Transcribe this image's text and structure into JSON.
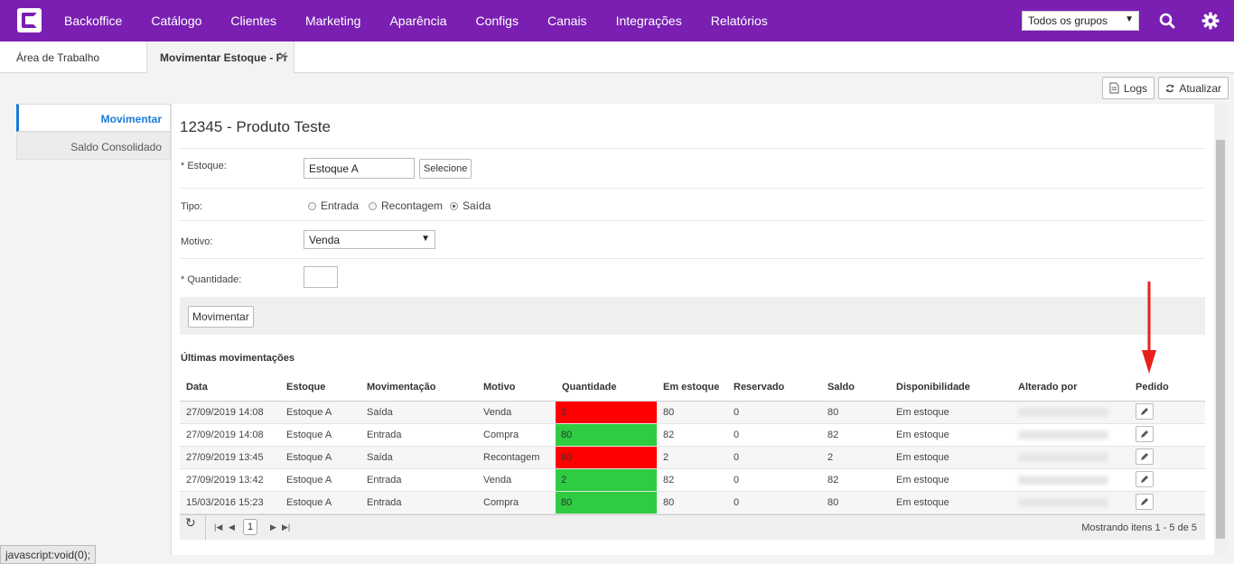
{
  "nav": {
    "items": [
      "Backoffice",
      "Catálogo",
      "Clientes",
      "Marketing",
      "Aparência",
      "Configs",
      "Canais",
      "Integrações",
      "Relatórios"
    ],
    "group_select": "Todos os grupos",
    "search_icon": "search-icon",
    "settings_icon": "gear-icon"
  },
  "tabs": {
    "workspace": "Área de Trabalho",
    "active": "Movimentar Estoque - Pr"
  },
  "toolbar": {
    "logs": "Logs",
    "refresh": "Atualizar"
  },
  "sidebar": {
    "items": [
      "Movimentar",
      "Saldo Consolidado"
    ]
  },
  "product": {
    "title": "12345 - Produto Teste"
  },
  "form": {
    "estoque_label": "* Estoque:",
    "estoque_value": "Estoque A",
    "select_button": "Selecione",
    "tipo_label": "Tipo:",
    "tipo_options": [
      "Entrada",
      "Recontagem",
      "Saída"
    ],
    "tipo_selected": "Saída",
    "motivo_label": "Motivo:",
    "motivo_value": "Venda",
    "quantidade_label": "* Quantidade:",
    "quantidade_value": "",
    "submit": "Movimentar"
  },
  "history": {
    "title": "Últimas movimentações",
    "columns": [
      "Data",
      "Estoque",
      "Movimentação",
      "Motivo",
      "Quantidade",
      "Em estoque",
      "Reservado",
      "Saldo",
      "Disponibilidade",
      "Alterado por",
      "Pedido"
    ],
    "rows": [
      {
        "data": "27/09/2019 14:08",
        "estoque": "Estoque A",
        "mov": "Saída",
        "motivo": "Venda",
        "qtd": "2",
        "qtd_color": "#ff0000",
        "em_estoque": "80",
        "reservado": "0",
        "saldo": "80",
        "disp": "Em estoque"
      },
      {
        "data": "27/09/2019 14:08",
        "estoque": "Estoque A",
        "mov": "Entrada",
        "motivo": "Compra",
        "qtd": "80",
        "qtd_color": "#2ecc40",
        "em_estoque": "82",
        "reservado": "0",
        "saldo": "82",
        "disp": "Em estoque"
      },
      {
        "data": "27/09/2019 13:45",
        "estoque": "Estoque A",
        "mov": "Saída",
        "motivo": "Recontagem",
        "qtd": "80",
        "qtd_color": "#ff0000",
        "em_estoque": "2",
        "reservado": "0",
        "saldo": "2",
        "disp": "Em estoque"
      },
      {
        "data": "27/09/2019 13:42",
        "estoque": "Estoque A",
        "mov": "Entrada",
        "motivo": "Venda",
        "qtd": "2",
        "qtd_color": "#2ecc40",
        "em_estoque": "82",
        "reservado": "0",
        "saldo": "82",
        "disp": "Em estoque"
      },
      {
        "data": "15/03/2016 15:23",
        "estoque": "Estoque A",
        "mov": "Entrada",
        "motivo": "Compra",
        "qtd": "80",
        "qtd_color": "#2ecc40",
        "em_estoque": "80",
        "reservado": "0",
        "saldo": "80",
        "disp": "Em estoque"
      }
    ]
  },
  "pager": {
    "page": "1",
    "info": "Mostrando itens 1 - 5 de 5"
  },
  "status": "javascript:void(0);",
  "colors": {
    "brand": "#7a1fb2",
    "accent": "#1a7bd5",
    "arrow": "#e8201c"
  }
}
